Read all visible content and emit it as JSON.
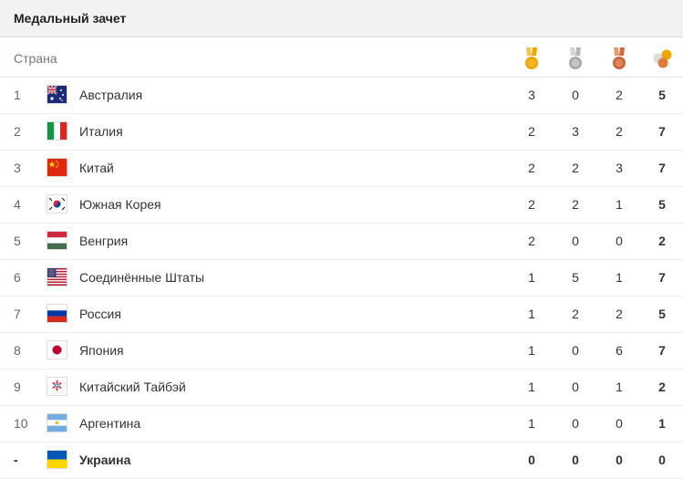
{
  "title": "Медальный зачет",
  "header": {
    "country_label": "Страна",
    "medals": [
      {
        "name": "gold-medal-icon",
        "ribbon": "#f6b42b",
        "disc": "#f0a500"
      },
      {
        "name": "silver-medal-icon",
        "ribbon": "#c8c8c8",
        "disc": "#a8a8a8"
      },
      {
        "name": "bronze-medal-icon",
        "ribbon": "#e0855a",
        "disc": "#c5653a"
      },
      {
        "name": "total-medals-icon",
        "ribbon": "#dddddd",
        "disc": "#e07b39"
      }
    ]
  },
  "rows": [
    {
      "rank": "1",
      "flag": "australia-flag-icon",
      "country": "Австралия",
      "gold": "3",
      "silver": "0",
      "bronze": "2",
      "total": "5"
    },
    {
      "rank": "2",
      "flag": "italy-flag-icon",
      "country": "Италия",
      "gold": "2",
      "silver": "3",
      "bronze": "2",
      "total": "7"
    },
    {
      "rank": "3",
      "flag": "china-flag-icon",
      "country": "Китай",
      "gold": "2",
      "silver": "2",
      "bronze": "3",
      "total": "7"
    },
    {
      "rank": "4",
      "flag": "south-korea-flag-icon",
      "country": "Южная Корея",
      "gold": "2",
      "silver": "2",
      "bronze": "1",
      "total": "5"
    },
    {
      "rank": "5",
      "flag": "hungary-flag-icon",
      "country": "Венгрия",
      "gold": "2",
      "silver": "0",
      "bronze": "0",
      "total": "2"
    },
    {
      "rank": "6",
      "flag": "usa-flag-icon",
      "country": "Соединённые Штаты",
      "gold": "1",
      "silver": "5",
      "bronze": "1",
      "total": "7"
    },
    {
      "rank": "7",
      "flag": "russia-flag-icon",
      "country": "Россия",
      "gold": "1",
      "silver": "2",
      "bronze": "2",
      "total": "5"
    },
    {
      "rank": "8",
      "flag": "japan-flag-icon",
      "country": "Япония",
      "gold": "1",
      "silver": "0",
      "bronze": "6",
      "total": "7"
    },
    {
      "rank": "9",
      "flag": "chinese-taipei-flag-icon",
      "country": "Китайский Тайбэй",
      "gold": "1",
      "silver": "0",
      "bronze": "1",
      "total": "2"
    },
    {
      "rank": "10",
      "flag": "argentina-flag-icon",
      "country": "Аргентина",
      "gold": "1",
      "silver": "0",
      "bronze": "0",
      "total": "1"
    },
    {
      "rank": "-",
      "flag": "ukraine-flag-icon",
      "country": "Украина",
      "gold": "0",
      "silver": "0",
      "bronze": "0",
      "total": "0"
    }
  ]
}
